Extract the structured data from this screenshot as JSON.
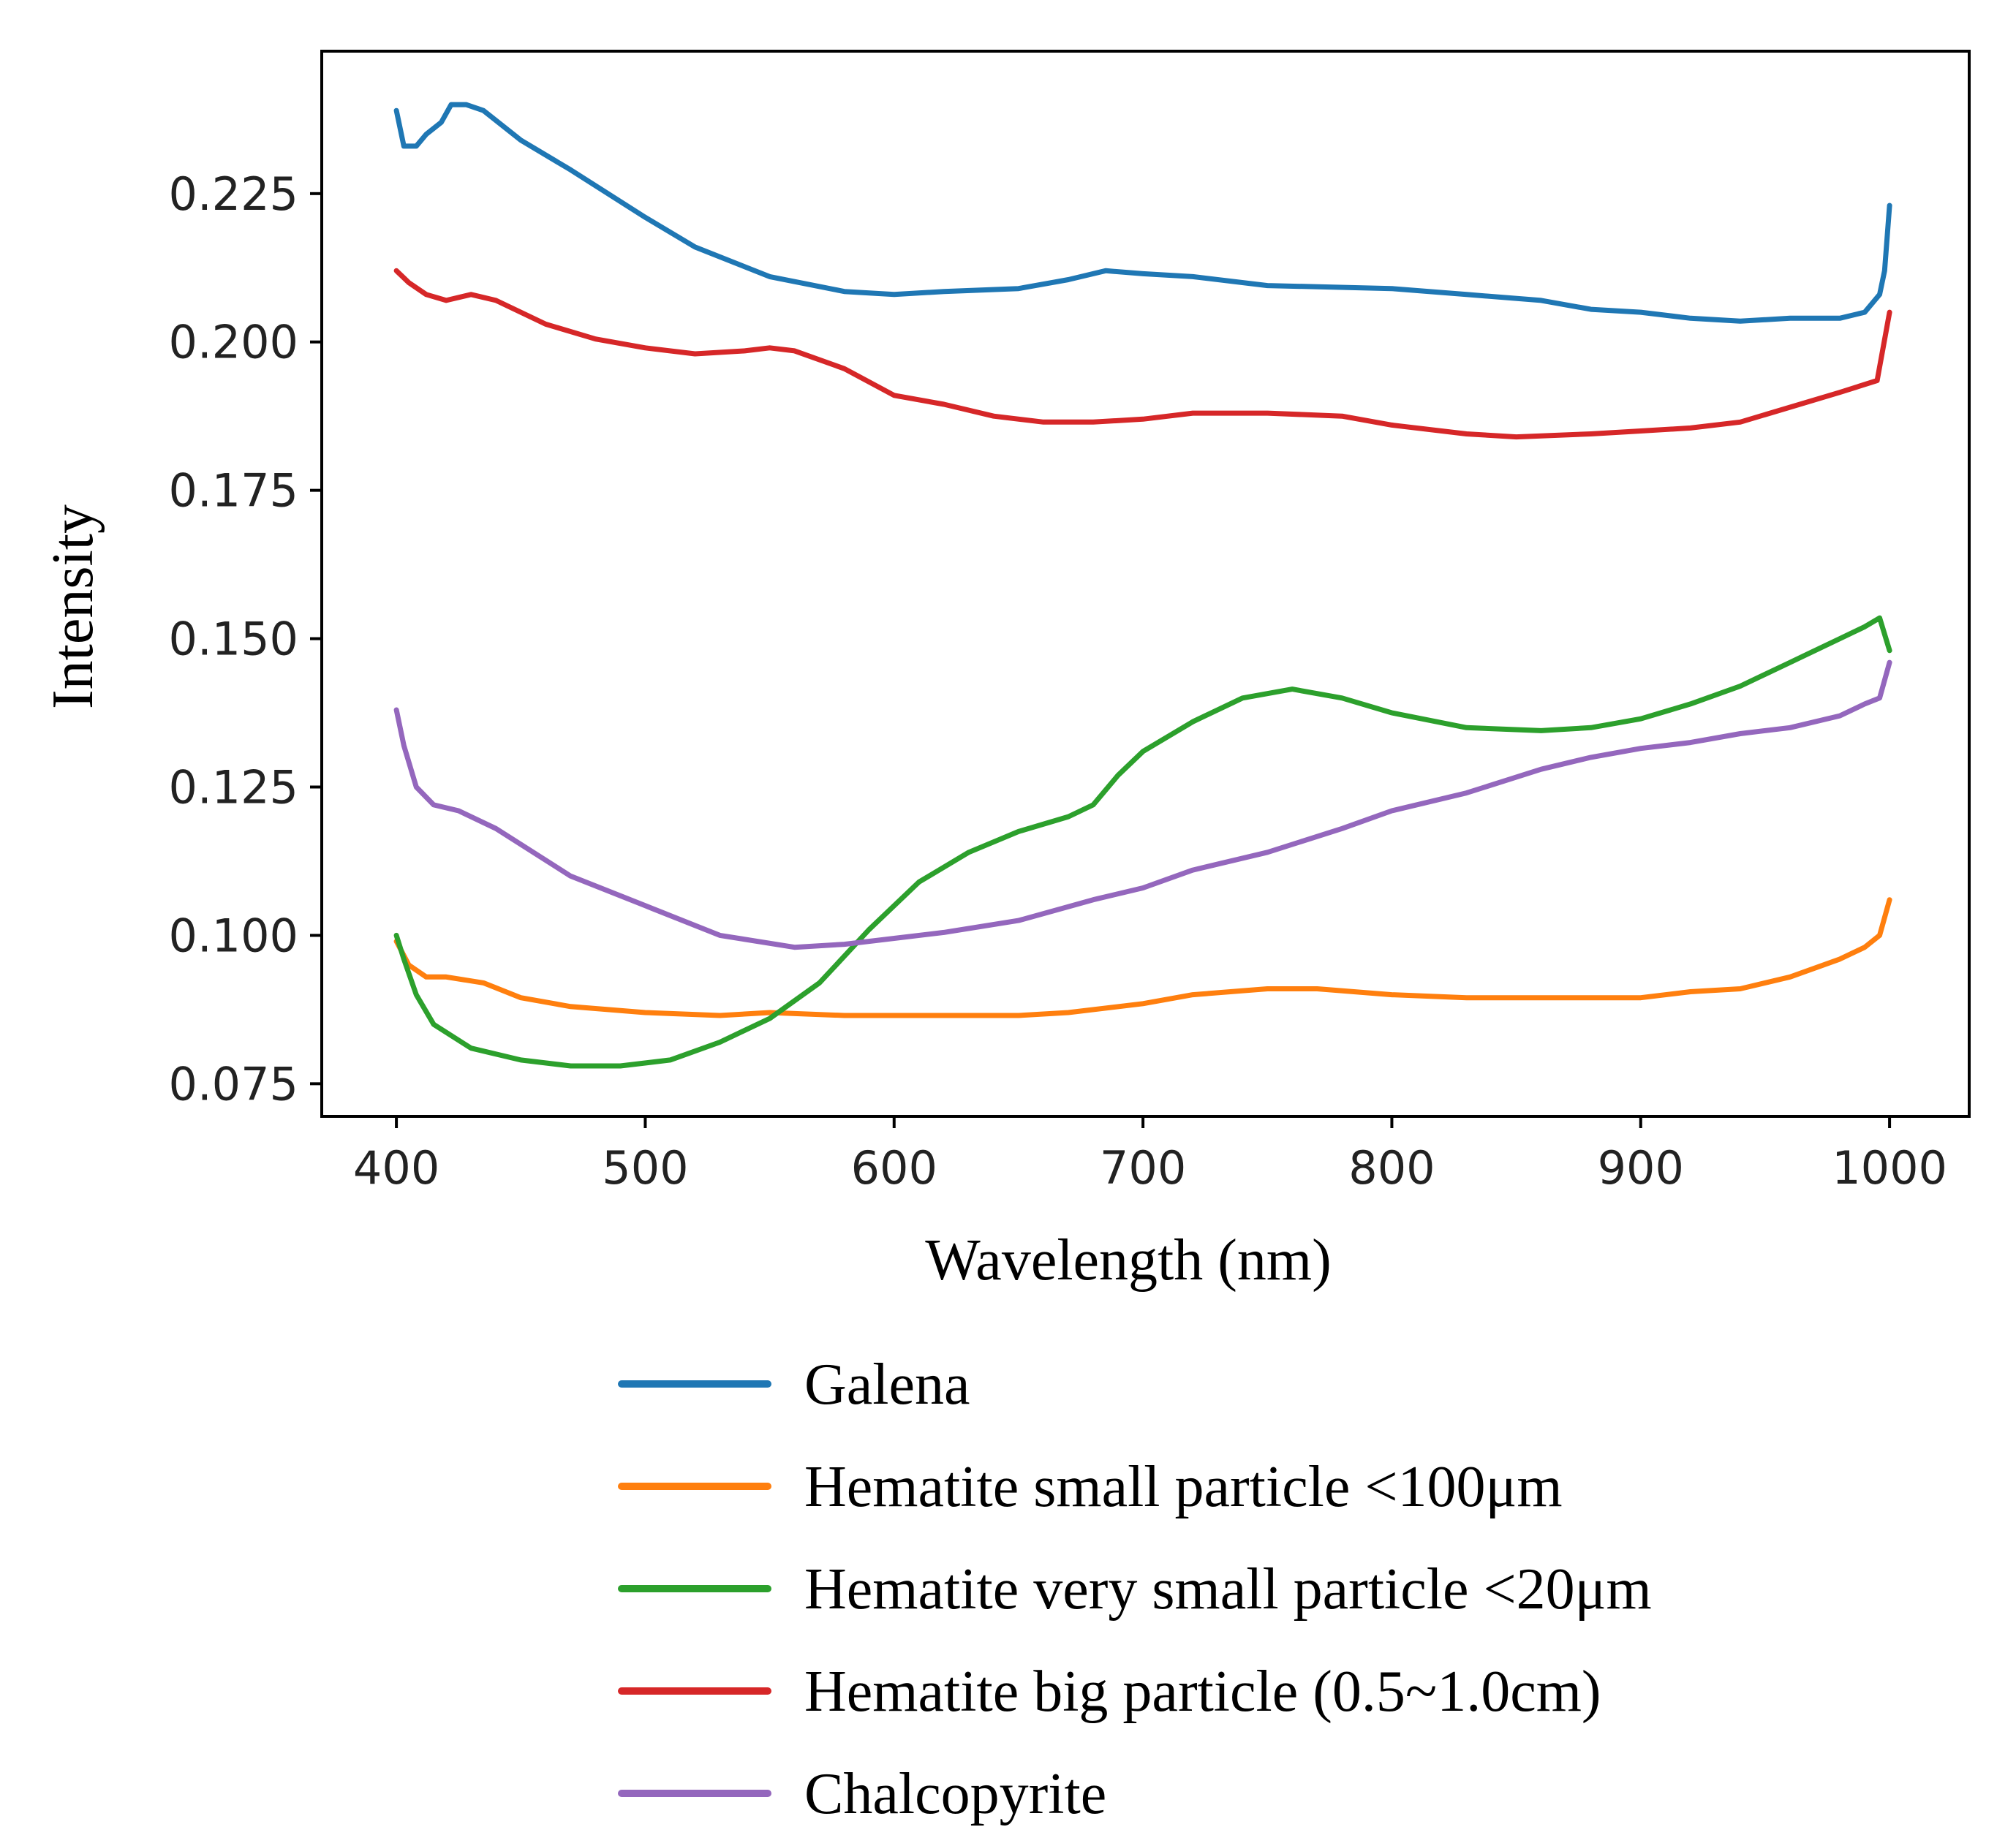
{
  "chart_data": {
    "type": "line",
    "title": "",
    "xlabel": "Wavelength  (nm)",
    "ylabel": "Intensity",
    "xlim": [
      370,
      1032
    ],
    "ylim": [
      0.0695,
      0.249
    ],
    "xticks": [
      400,
      500,
      600,
      700,
      800,
      900,
      1000
    ],
    "xtick_labels": [
      "400",
      "500",
      "600",
      "700",
      "800",
      "900",
      "1000"
    ],
    "yticks": [
      0.075,
      0.1,
      0.125,
      0.15,
      0.175,
      0.2,
      0.225
    ],
    "ytick_labels": [
      "0.075",
      "0.100",
      "0.125",
      "0.150",
      "0.175",
      "0.200",
      "0.225"
    ],
    "grid": false,
    "legend_position": "below",
    "series": [
      {
        "name": "Galena",
        "color": "#1f77b4",
        "points": [
          [
            400,
            0.239
          ],
          [
            403,
            0.233
          ],
          [
            408,
            0.233
          ],
          [
            412,
            0.235
          ],
          [
            418,
            0.237
          ],
          [
            422,
            0.24
          ],
          [
            428,
            0.24
          ],
          [
            435,
            0.239
          ],
          [
            450,
            0.234
          ],
          [
            470,
            0.229
          ],
          [
            500,
            0.221
          ],
          [
            520,
            0.216
          ],
          [
            550,
            0.211
          ],
          [
            580,
            0.2085
          ],
          [
            600,
            0.208
          ],
          [
            620,
            0.2085
          ],
          [
            650,
            0.209
          ],
          [
            670,
            0.2105
          ],
          [
            685,
            0.212
          ],
          [
            700,
            0.2115
          ],
          [
            720,
            0.211
          ],
          [
            750,
            0.2095
          ],
          [
            800,
            0.209
          ],
          [
            830,
            0.208
          ],
          [
            860,
            0.207
          ],
          [
            880,
            0.2055
          ],
          [
            900,
            0.205
          ],
          [
            920,
            0.204
          ],
          [
            940,
            0.2035
          ],
          [
            960,
            0.204
          ],
          [
            980,
            0.204
          ],
          [
            990,
            0.205
          ],
          [
            996,
            0.208
          ],
          [
            998,
            0.212
          ],
          [
            1000,
            0.223
          ]
        ]
      },
      {
        "name": "Hematite small particle <100μm",
        "color": "#ff7f0e",
        "points": [
          [
            400,
            0.099
          ],
          [
            405,
            0.095
          ],
          [
            412,
            0.093
          ],
          [
            420,
            0.093
          ],
          [
            435,
            0.092
          ],
          [
            450,
            0.0895
          ],
          [
            470,
            0.088
          ],
          [
            500,
            0.087
          ],
          [
            530,
            0.0865
          ],
          [
            550,
            0.087
          ],
          [
            580,
            0.0865
          ],
          [
            600,
            0.0865
          ],
          [
            630,
            0.0865
          ],
          [
            650,
            0.0865
          ],
          [
            670,
            0.087
          ],
          [
            700,
            0.0885
          ],
          [
            720,
            0.09
          ],
          [
            750,
            0.091
          ],
          [
            770,
            0.091
          ],
          [
            800,
            0.09
          ],
          [
            830,
            0.0895
          ],
          [
            860,
            0.0895
          ],
          [
            880,
            0.0895
          ],
          [
            900,
            0.0895
          ],
          [
            920,
            0.0905
          ],
          [
            940,
            0.091
          ],
          [
            960,
            0.093
          ],
          [
            980,
            0.096
          ],
          [
            990,
            0.098
          ],
          [
            996,
            0.1
          ],
          [
            1000,
            0.106
          ]
        ]
      },
      {
        "name": "Hematite very small particle <20μm",
        "color": "#2ca02c",
        "points": [
          [
            400,
            0.1
          ],
          [
            403,
            0.096
          ],
          [
            408,
            0.09
          ],
          [
            415,
            0.085
          ],
          [
            430,
            0.081
          ],
          [
            450,
            0.079
          ],
          [
            470,
            0.078
          ],
          [
            490,
            0.078
          ],
          [
            510,
            0.079
          ],
          [
            530,
            0.082
          ],
          [
            550,
            0.086
          ],
          [
            570,
            0.092
          ],
          [
            590,
            0.101
          ],
          [
            610,
            0.109
          ],
          [
            630,
            0.114
          ],
          [
            650,
            0.1175
          ],
          [
            670,
            0.12
          ],
          [
            680,
            0.122
          ],
          [
            690,
            0.127
          ],
          [
            700,
            0.131
          ],
          [
            720,
            0.136
          ],
          [
            740,
            0.14
          ],
          [
            760,
            0.1415
          ],
          [
            780,
            0.14
          ],
          [
            800,
            0.1375
          ],
          [
            830,
            0.135
          ],
          [
            860,
            0.1345
          ],
          [
            880,
            0.135
          ],
          [
            900,
            0.1365
          ],
          [
            920,
            0.139
          ],
          [
            940,
            0.142
          ],
          [
            960,
            0.146
          ],
          [
            980,
            0.15
          ],
          [
            990,
            0.152
          ],
          [
            996,
            0.1535
          ],
          [
            1000,
            0.148
          ]
        ]
      },
      {
        "name": "Hematite big particle (0.5~1.0cm)",
        "color": "#d62728",
        "points": [
          [
            400,
            0.212
          ],
          [
            405,
            0.21
          ],
          [
            412,
            0.208
          ],
          [
            420,
            0.207
          ],
          [
            430,
            0.208
          ],
          [
            440,
            0.207
          ],
          [
            460,
            0.203
          ],
          [
            480,
            0.2005
          ],
          [
            500,
            0.199
          ],
          [
            520,
            0.198
          ],
          [
            540,
            0.1985
          ],
          [
            550,
            0.199
          ],
          [
            560,
            0.1985
          ],
          [
            580,
            0.1955
          ],
          [
            600,
            0.191
          ],
          [
            620,
            0.1895
          ],
          [
            640,
            0.1875
          ],
          [
            660,
            0.1865
          ],
          [
            680,
            0.1865
          ],
          [
            700,
            0.187
          ],
          [
            720,
            0.188
          ],
          [
            750,
            0.188
          ],
          [
            780,
            0.1875
          ],
          [
            800,
            0.186
          ],
          [
            830,
            0.1845
          ],
          [
            850,
            0.184
          ],
          [
            880,
            0.1845
          ],
          [
            900,
            0.185
          ],
          [
            920,
            0.1855
          ],
          [
            940,
            0.1865
          ],
          [
            960,
            0.189
          ],
          [
            980,
            0.1915
          ],
          [
            995,
            0.1935
          ],
          [
            1000,
            0.205
          ]
        ]
      },
      {
        "name": "Chalcopyrite",
        "color": "#9467bd",
        "points": [
          [
            400,
            0.138
          ],
          [
            403,
            0.132
          ],
          [
            408,
            0.125
          ],
          [
            415,
            0.122
          ],
          [
            425,
            0.121
          ],
          [
            440,
            0.118
          ],
          [
            455,
            0.114
          ],
          [
            470,
            0.11
          ],
          [
            500,
            0.105
          ],
          [
            530,
            0.1
          ],
          [
            560,
            0.098
          ],
          [
            580,
            0.0985
          ],
          [
            600,
            0.0995
          ],
          [
            620,
            0.1005
          ],
          [
            650,
            0.1025
          ],
          [
            680,
            0.106
          ],
          [
            700,
            0.108
          ],
          [
            720,
            0.111
          ],
          [
            750,
            0.114
          ],
          [
            780,
            0.118
          ],
          [
            800,
            0.121
          ],
          [
            830,
            0.124
          ],
          [
            860,
            0.128
          ],
          [
            880,
            0.13
          ],
          [
            900,
            0.1315
          ],
          [
            920,
            0.1325
          ],
          [
            940,
            0.134
          ],
          [
            960,
            0.135
          ],
          [
            980,
            0.137
          ],
          [
            990,
            0.139
          ],
          [
            996,
            0.14
          ],
          [
            1000,
            0.146
          ]
        ]
      }
    ]
  }
}
